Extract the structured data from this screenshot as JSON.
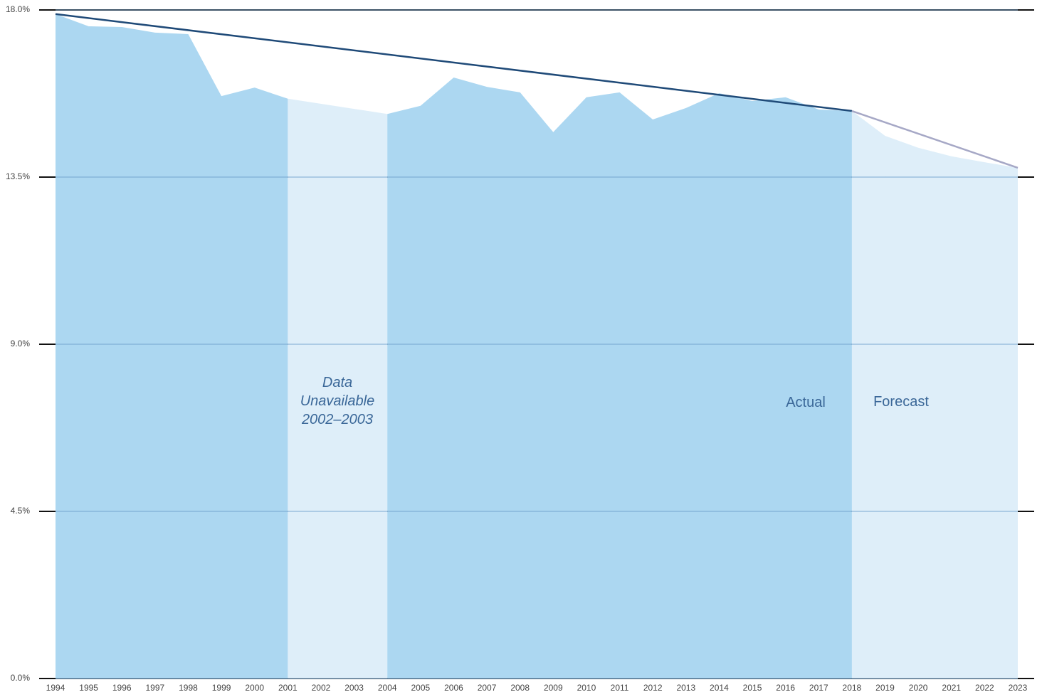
{
  "chart_data": {
    "type": "area",
    "categories": [
      "1994",
      "1995",
      "1996",
      "1997",
      "1998",
      "1999",
      "2000",
      "2001",
      "2002",
      "2003",
      "2004",
      "2005",
      "2006",
      "2007",
      "2008",
      "2009",
      "2010",
      "2011",
      "2012",
      "2013",
      "2014",
      "2015",
      "2016",
      "2017",
      "2018",
      "2019",
      "2020",
      "2021",
      "2022",
      "2023"
    ],
    "series": [
      {
        "color": "#acd7f1",
        "values": [
          17.89,
          17.56,
          17.54,
          17.39,
          17.35,
          15.68,
          15.91,
          15.61,
          null,
          null,
          15.2,
          15.42,
          16.18,
          15.93,
          15.78,
          14.71,
          15.65,
          15.78,
          15.05,
          15.36,
          15.76,
          15.55,
          15.65,
          15.32,
          15.28,
          null,
          null,
          null,
          null,
          null
        ]
      },
      {
        "color": "#deeef9",
        "values": [
          null,
          null,
          null,
          null,
          null,
          null,
          null,
          null,
          null,
          null,
          null,
          null,
          null,
          null,
          null,
          null,
          null,
          null,
          null,
          null,
          null,
          null,
          null,
          null,
          null,
          14.61,
          14.29,
          14.06,
          13.9,
          13.75
        ]
      }
    ],
    "gap_color": "#deeef9",
    "trend_lines": [
      {
        "color": "#1f4a78",
        "x": [
          "1994",
          "2018"
        ],
        "values": [
          17.89,
          15.28
        ]
      },
      {
        "color": "#a6a8c6",
        "x": [
          "2018",
          "2023"
        ],
        "values": [
          15.28,
          13.75
        ]
      }
    ],
    "ylim": [
      0,
      18
    ],
    "yticks": [
      {
        "value": 0,
        "label": "0.0%"
      },
      {
        "value": 4.5,
        "label": "4.5%"
      },
      {
        "value": 9,
        "label": "9.0%"
      },
      {
        "value": 13.5,
        "label": "13.5%"
      },
      {
        "value": 18,
        "label": "18.0%"
      }
    ],
    "grid": true,
    "annotations": [
      {
        "lines": [
          "Data",
          "Unavailable",
          "2002–2003"
        ],
        "italic": true
      },
      {
        "lines": [
          "Actual"
        ],
        "italic": false
      },
      {
        "lines": [
          "Forecast"
        ],
        "italic": false
      }
    ]
  }
}
